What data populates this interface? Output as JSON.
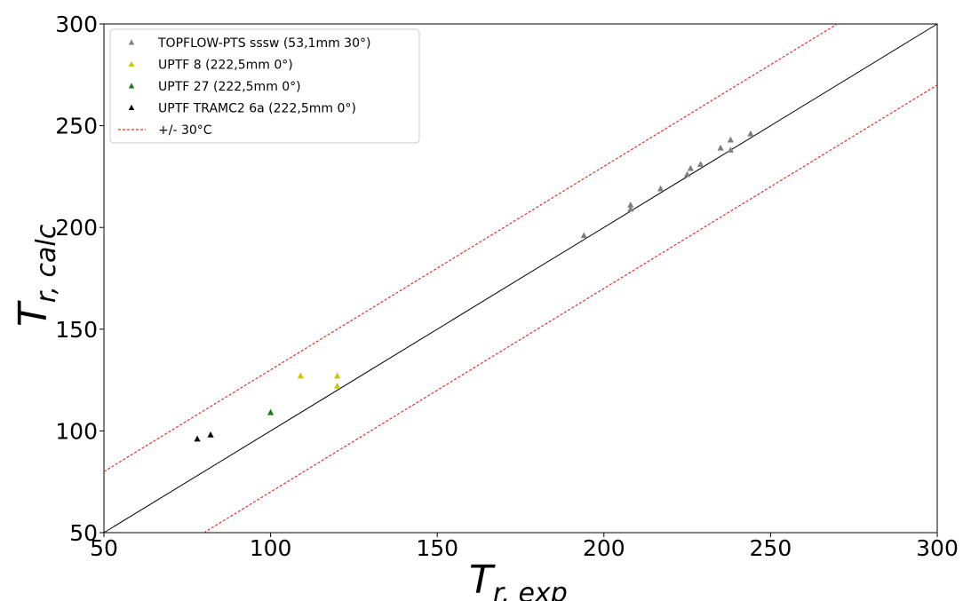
{
  "chart_data": {
    "type": "scatter",
    "xlim": [
      50,
      300
    ],
    "ylim": [
      50,
      300
    ],
    "x_ticks": [
      50,
      100,
      150,
      200,
      250,
      300
    ],
    "y_ticks": [
      50,
      100,
      150,
      200,
      250,
      300
    ],
    "xlabel": {
      "main": "T",
      "sub": "r, exp"
    },
    "ylabel": {
      "main": "T",
      "sub": "r, calc"
    },
    "grid": false,
    "legend_position": "top-left",
    "series": [
      {
        "name": "TOPFLOW-PTS sssw (53,1mm 30°)",
        "color": "#808080",
        "marker": "triangle",
        "points": [
          [
            194,
            196
          ],
          [
            208,
            211
          ],
          [
            208,
            209
          ],
          [
            217,
            219
          ],
          [
            225,
            226
          ],
          [
            226,
            229
          ],
          [
            229,
            231
          ],
          [
            235,
            239
          ],
          [
            238,
            243
          ],
          [
            238,
            238
          ],
          [
            244,
            246
          ]
        ]
      },
      {
        "name": "UPTF 8 (222,5mm 0°)",
        "color": "#c8c800",
        "marker": "triangle",
        "points": [
          [
            109,
            127
          ],
          [
            120,
            127
          ],
          [
            120,
            122
          ]
        ]
      },
      {
        "name": "UPTF 27 (222,5mm 0°)",
        "color": "#1a7a1a",
        "marker": "triangle",
        "points": [
          [
            100,
            109
          ]
        ]
      },
      {
        "name": "UPTF TRAMC2 6a (222,5mm 0°)",
        "color": "#000000",
        "marker": "triangle",
        "points": [
          [
            78,
            96
          ],
          [
            82,
            98
          ]
        ]
      }
    ],
    "reference_lines": [
      {
        "name": "",
        "kind": "identity",
        "offset": 0,
        "color": "#000000",
        "dashed": false
      },
      {
        "name": "+/- 30°C",
        "kind": "band",
        "offset": 30,
        "color": "#e03030",
        "dashed": true
      },
      {
        "name": "",
        "kind": "band",
        "offset": -30,
        "color": "#e03030",
        "dashed": true
      }
    ]
  }
}
